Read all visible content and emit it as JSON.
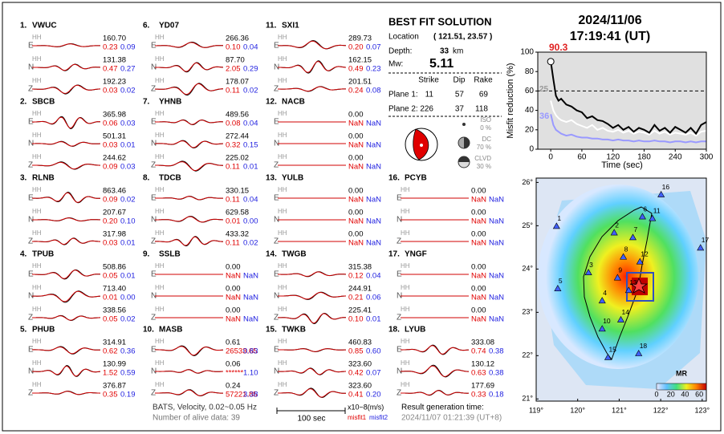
{
  "header": {
    "date": "2024/11/06",
    "time": "17:19:41  (UT)"
  },
  "stations": [
    {
      "label": "1.",
      "name": "VWUC",
      "channels": [
        {
          "comp": "E",
          "inst": "HH",
          "amp": "160.70",
          "misfit1": "0.23",
          "misfit2": "0.09"
        },
        {
          "comp": "N",
          "inst": "HH",
          "amp": "131.38",
          "misfit1": "0.47",
          "misfit2": "0.27"
        },
        {
          "comp": "Z",
          "inst": "HH",
          "amp": "192.23",
          "misfit1": "0.03",
          "misfit2": "0.02"
        }
      ]
    },
    {
      "label": "2.",
      "name": "SBCB",
      "channels": [
        {
          "comp": "E",
          "inst": "HH",
          "amp": "365.98",
          "misfit1": "0.06",
          "misfit2": "0.03"
        },
        {
          "comp": "N",
          "inst": "HH",
          "amp": "501.31",
          "misfit1": "0.03",
          "misfit2": "0.01"
        },
        {
          "comp": "Z",
          "inst": "HH",
          "amp": "244.62",
          "misfit1": "0.09",
          "misfit2": "0.03"
        }
      ]
    },
    {
      "label": "3.",
      "name": "RLNB",
      "channels": [
        {
          "comp": "E",
          "inst": "HH",
          "amp": "863.46",
          "misfit1": "0.09",
          "misfit2": "0.02"
        },
        {
          "comp": "N",
          "inst": "HH",
          "amp": "207.67",
          "misfit1": "0.20",
          "misfit2": "0.10"
        },
        {
          "comp": "Z",
          "inst": "HH",
          "amp": "317.98",
          "misfit1": "0.03",
          "misfit2": "0.01"
        }
      ]
    },
    {
      "label": "4.",
      "name": "TPUB",
      "channels": [
        {
          "comp": "E",
          "inst": "HH",
          "amp": "508.86",
          "misfit1": "0.05",
          "misfit2": "0.01"
        },
        {
          "comp": "N",
          "inst": "HH",
          "amp": "713.40",
          "misfit1": "0.01",
          "misfit2": "0.00"
        },
        {
          "comp": "Z",
          "inst": "HH",
          "amp": "338.56",
          "misfit1": "0.05",
          "misfit2": "0.02"
        }
      ]
    },
    {
      "label": "5.",
      "name": "PHUB",
      "channels": [
        {
          "comp": "E",
          "inst": "HH",
          "amp": "314.91",
          "misfit1": "0.62",
          "misfit2": "0.36"
        },
        {
          "comp": "N",
          "inst": "HH",
          "amp": "130.99",
          "misfit1": "1.52",
          "misfit2": "0.59"
        },
        {
          "comp": "Z",
          "inst": "HH",
          "amp": "376.87",
          "misfit1": "0.35",
          "misfit2": "0.19"
        }
      ]
    },
    {
      "label": "6.",
      "name": "YD07",
      "channels": [
        {
          "comp": "E",
          "inst": "HH",
          "amp": "266.36",
          "misfit1": "0.10",
          "misfit2": "0.04"
        },
        {
          "comp": "N",
          "inst": "HH",
          "amp": "87.70",
          "misfit1": "2.05",
          "misfit2": "0.29"
        },
        {
          "comp": "Z",
          "inst": "HH",
          "amp": "178.07",
          "misfit1": "0.11",
          "misfit2": "0.02"
        }
      ]
    },
    {
      "label": "7.",
      "name": "YHNB",
      "channels": [
        {
          "comp": "E",
          "inst": "HH",
          "amp": "489.56",
          "misfit1": "0.08",
          "misfit2": "0.04"
        },
        {
          "comp": "N",
          "inst": "HH",
          "amp": "272.44",
          "misfit1": "0.32",
          "misfit2": "0.15"
        },
        {
          "comp": "Z",
          "inst": "HH",
          "amp": "225.02",
          "misfit1": "0.11",
          "misfit2": "0.01"
        }
      ]
    },
    {
      "label": "8.",
      "name": "TDCB",
      "channels": [
        {
          "comp": "E",
          "inst": "HH",
          "amp": "330.15",
          "misfit1": "0.11",
          "misfit2": "0.04"
        },
        {
          "comp": "N",
          "inst": "HH",
          "amp": "629.58",
          "misfit1": "0.01",
          "misfit2": "0.00"
        },
        {
          "comp": "Z",
          "inst": "HH",
          "amp": "433.32",
          "misfit1": "0.11",
          "misfit2": "0.02"
        }
      ]
    },
    {
      "label": "9.",
      "name": "SSLB",
      "channels": [
        {
          "comp": "E",
          "inst": "HH",
          "amp": "0.00",
          "misfit1": "NaN",
          "misfit2": "NaN"
        },
        {
          "comp": "N",
          "inst": "HH",
          "amp": "0.00",
          "misfit1": "NaN",
          "misfit2": "NaN"
        },
        {
          "comp": "Z",
          "inst": "HH",
          "amp": "0.00",
          "misfit1": "NaN",
          "misfit2": "NaN"
        }
      ]
    },
    {
      "label": "10.",
      "name": "MASB",
      "channels": [
        {
          "comp": "E",
          "inst": "HH",
          "amp": "0.61",
          "misfit1": "26533.65",
          "misfit2": "0.83"
        },
        {
          "comp": "N",
          "inst": "HH",
          "amp": "0.06",
          "misfit1": "******",
          "misfit2": "1.10"
        },
        {
          "comp": "Z",
          "inst": "HH",
          "amp": "0.24",
          "misfit1": "57221.85",
          "misfit2": "3.38"
        }
      ]
    },
    {
      "label": "11.",
      "name": "SXI1",
      "channels": [
        {
          "comp": "E",
          "inst": "HH",
          "amp": "289.73",
          "misfit1": "0.20",
          "misfit2": "0.07"
        },
        {
          "comp": "N",
          "inst": "HH",
          "amp": "162.15",
          "misfit1": "0.49",
          "misfit2": "0.23"
        },
        {
          "comp": "Z",
          "inst": "HH",
          "amp": "201.51",
          "misfit1": "0.24",
          "misfit2": "0.08"
        }
      ]
    },
    {
      "label": "12.",
      "name": "NACB",
      "channels": [
        {
          "comp": "E",
          "inst": "HH",
          "amp": "0.00",
          "misfit1": "NaN",
          "misfit2": "NaN"
        },
        {
          "comp": "N",
          "inst": "HH",
          "amp": "0.00",
          "misfit1": "NaN",
          "misfit2": "NaN"
        },
        {
          "comp": "Z",
          "inst": "HH",
          "amp": "0.00",
          "misfit1": "NaN",
          "misfit2": "NaN"
        }
      ]
    },
    {
      "label": "13.",
      "name": "YULB",
      "channels": [
        {
          "comp": "E",
          "inst": "HH",
          "amp": "0.00",
          "misfit1": "NaN",
          "misfit2": "NaN"
        },
        {
          "comp": "N",
          "inst": "HH",
          "amp": "0.00",
          "misfit1": "NaN",
          "misfit2": "NaN"
        },
        {
          "comp": "Z",
          "inst": "HH",
          "amp": "0.00",
          "misfit1": "NaN",
          "misfit2": "NaN"
        }
      ]
    },
    {
      "label": "14.",
      "name": "TWGB",
      "channels": [
        {
          "comp": "E",
          "inst": "HH",
          "amp": "315.38",
          "misfit1": "0.12",
          "misfit2": "0.04"
        },
        {
          "comp": "N",
          "inst": "HH",
          "amp": "244.91",
          "misfit1": "0.21",
          "misfit2": "0.06"
        },
        {
          "comp": "Z",
          "inst": "HH",
          "amp": "225.41",
          "misfit1": "0.10",
          "misfit2": "0.01"
        }
      ]
    },
    {
      "label": "15.",
      "name": "TWKB",
      "channels": [
        {
          "comp": "E",
          "inst": "HH",
          "amp": "460.83",
          "misfit1": "0.85",
          "misfit2": "0.60"
        },
        {
          "comp": "N",
          "inst": "HH",
          "amp": "323.60",
          "misfit1": "0.42",
          "misfit2": "0.07"
        },
        {
          "comp": "Z",
          "inst": "HH",
          "amp": "323.60",
          "misfit1": "0.41",
          "misfit2": "0.20"
        }
      ]
    },
    {
      "label": "16.",
      "name": "PCYB",
      "channels": [
        {
          "comp": "E",
          "inst": "HH",
          "amp": "0.00",
          "misfit1": "NaN",
          "misfit2": "NaN"
        },
        {
          "comp": "N",
          "inst": "HH",
          "amp": "0.00",
          "misfit1": "NaN",
          "misfit2": "NaN"
        },
        {
          "comp": "Z",
          "inst": "HH",
          "amp": "0.00",
          "misfit1": "NaN",
          "misfit2": "NaN"
        }
      ]
    },
    {
      "label": "17.",
      "name": "YNGF",
      "channels": [
        {
          "comp": "E",
          "inst": "HH",
          "amp": "0.00",
          "misfit1": "NaN",
          "misfit2": "NaN"
        },
        {
          "comp": "N",
          "inst": "HH",
          "amp": "0.00",
          "misfit1": "NaN",
          "misfit2": "NaN"
        },
        {
          "comp": "Z",
          "inst": "HH",
          "amp": "0.00",
          "misfit1": "NaN",
          "misfit2": "NaN"
        }
      ]
    },
    {
      "label": "18.",
      "name": "LYUB",
      "channels": [
        {
          "comp": "E",
          "inst": "HH",
          "amp": "333.08",
          "misfit1": "0.74",
          "misfit2": "0.38"
        },
        {
          "comp": "N",
          "inst": "HH",
          "amp": "130.12",
          "misfit1": "0.63",
          "misfit2": "0.38"
        },
        {
          "comp": "Z",
          "inst": "HH",
          "amp": "177.69",
          "misfit1": "0.33",
          "misfit2": "0.18"
        }
      ]
    }
  ],
  "solution": {
    "title": "BEST FIT SOLUTION",
    "location_label": "Location",
    "location": "( 121.51, 23.57 )",
    "depth_label": "Depth:",
    "depth": "33",
    "depth_unit": "km",
    "mw_label": "Mw:",
    "mw": "5.11",
    "columns": [
      "Strike",
      "Dip",
      "Rake"
    ],
    "planes": [
      {
        "name": "Plane 1:",
        "values": [
          "11",
          "57",
          "69"
        ]
      },
      {
        "name": "Plane 2:",
        "values": [
          "226",
          "37",
          "118"
        ]
      }
    ],
    "components": [
      {
        "name": "ISO",
        "percent": "0 %"
      },
      {
        "name": "DC",
        "percent": "70 %"
      },
      {
        "name": "CLVD",
        "percent": "30 %"
      }
    ]
  },
  "footer": {
    "filter": "BATS, Velocity, 0.02~0.05 Hz",
    "alive": "Number of alive data: 39",
    "scale": "100 sec",
    "unit": "x10−8(m/s)",
    "misfit1": "misfit1",
    "misfit2": "misfit2",
    "result_label": "Result generation time:",
    "result_time": "2024/11/07 01:21:39 (UT+8)"
  },
  "chart_data": {
    "type": "line",
    "x_label": "Time (sec)",
    "y_label": "Misfit reduction (%)",
    "annotations": [
      "90.3",
      "25",
      "36"
    ],
    "x": [
      0,
      5,
      10,
      15,
      20,
      30,
      40,
      50,
      60,
      70,
      80,
      90,
      100,
      110,
      120,
      130,
      140,
      150,
      160,
      170,
      180,
      190,
      200,
      210,
      220,
      230,
      240,
      250,
      260,
      270,
      280,
      290,
      300
    ],
    "series": [
      {
        "color": "#000000",
        "values": [
          90.3,
          72,
          55,
          50,
          52,
          46,
          44,
          40,
          38,
          32,
          34,
          30,
          29,
          26,
          22,
          25,
          20,
          23,
          18,
          22,
          20,
          17,
          25,
          19,
          22,
          17,
          23,
          20,
          17,
          22,
          16,
          25,
          28
        ]
      },
      {
        "color": "#ffffff",
        "values": [
          50,
          40,
          35,
          32,
          30,
          28,
          30,
          26,
          24,
          22,
          25,
          20,
          22,
          19,
          18,
          20,
          17,
          19,
          16,
          18,
          17,
          15,
          19,
          16,
          18,
          15,
          17,
          16,
          15,
          17,
          14,
          18,
          19
        ]
      },
      {
        "color": "#9999ff",
        "values": [
          36,
          25,
          20,
          18,
          16,
          14,
          15,
          13,
          12,
          12,
          11,
          11,
          10,
          10,
          9,
          10,
          9,
          9,
          8,
          9,
          8,
          8,
          9,
          8,
          8,
          7,
          8,
          8,
          7,
          8,
          7,
          8,
          8
        ]
      }
    ],
    "xlim": [
      -25,
      300
    ],
    "ylim": [
      0,
      100
    ],
    "xticks": [
      0,
      60,
      120,
      180,
      240,
      300
    ],
    "yticks": [
      0,
      20,
      40,
      60,
      80,
      100
    ],
    "reference_line": 60
  },
  "map": {
    "xlim": [
      119,
      123.1
    ],
    "ylim": [
      20.95,
      26.1
    ],
    "xticks": [
      {
        "value": 119,
        "label": "119°"
      },
      {
        "value": 120,
        "label": "120°"
      },
      {
        "value": 121,
        "label": "121°"
      },
      {
        "value": 122,
        "label": "122°"
      },
      {
        "value": 123,
        "label": "123°"
      }
    ],
    "yticks": [
      {
        "value": 21,
        "label": "21°"
      },
      {
        "value": 22,
        "label": "22°"
      },
      {
        "value": 23,
        "label": "23°"
      },
      {
        "value": 24,
        "label": "24°"
      },
      {
        "value": 25,
        "label": "25°"
      },
      {
        "value": 26,
        "label": "26°"
      }
    ],
    "stations": [
      {
        "label": "1",
        "lon": 119.49,
        "lat": 24.99
      },
      {
        "label": "2",
        "lon": 120.88,
        "lat": 24.84
      },
      {
        "label": "3",
        "lon": 120.26,
        "lat": 23.92
      },
      {
        "label": "4",
        "lon": 120.59,
        "lat": 23.27
      },
      {
        "label": "5",
        "lon": 119.52,
        "lat": 23.55
      },
      {
        "label": "6",
        "lon": 121.56,
        "lat": 25.21
      },
      {
        "label": "7",
        "lon": 121.33,
        "lat": 24.73
      },
      {
        "label": "8",
        "lon": 121.1,
        "lat": 24.28
      },
      {
        "label": "9",
        "lon": 120.96,
        "lat": 23.8
      },
      {
        "label": "10",
        "lon": 120.59,
        "lat": 22.62
      },
      {
        "label": "11",
        "lon": 121.8,
        "lat": 25.17
      },
      {
        "label": "12",
        "lon": 121.5,
        "lat": 24.17
      },
      {
        "label": "13",
        "lon": 121.23,
        "lat": 23.51
      },
      {
        "label": "14",
        "lon": 121.04,
        "lat": 22.83
      },
      {
        "label": "15",
        "lon": 120.73,
        "lat": 21.96
      },
      {
        "label": "16",
        "lon": 122.01,
        "lat": 25.72
      },
      {
        "label": "17",
        "lon": 122.96,
        "lat": 24.49
      },
      {
        "label": "18",
        "lon": 121.47,
        "lat": 22.05
      }
    ],
    "colorbar": {
      "label": "MR",
      "lim": [
        0,
        70
      ],
      "ticks": [
        0,
        20,
        40,
        60
      ]
    }
  }
}
